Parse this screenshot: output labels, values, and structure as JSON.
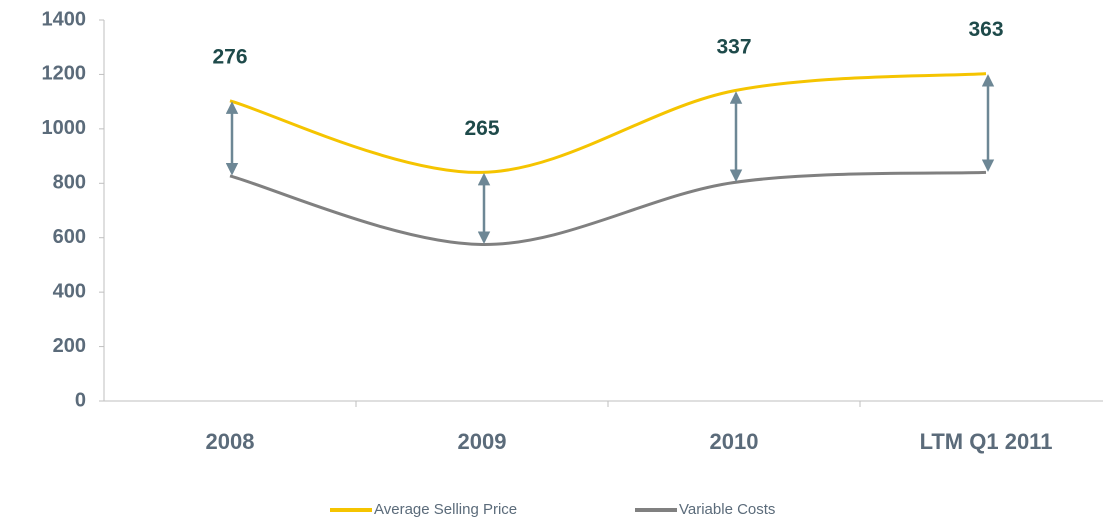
{
  "chart_data": {
    "type": "line",
    "categories": [
      "2008",
      "2009",
      "2010",
      "LTM Q1 2011"
    ],
    "series": [
      {
        "name": "Average Selling Price",
        "color": "#f5c400",
        "values": [
          1103,
          840,
          1140,
          1203
        ]
      },
      {
        "name": "Variable Costs",
        "color": "#808080",
        "values": [
          827,
          575,
          803,
          840
        ]
      }
    ],
    "annotations": [
      276,
      265,
      337,
      363
    ],
    "ylim": [
      0,
      1400
    ],
    "yticks": [
      0,
      200,
      400,
      600,
      800,
      1000,
      1200,
      1400
    ],
    "grid": false,
    "legend": "bottom"
  }
}
